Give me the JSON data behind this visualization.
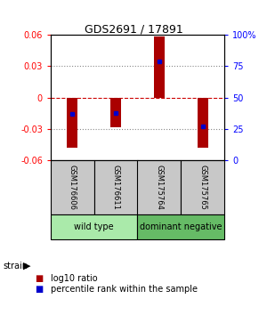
{
  "title": "GDS2691 / 17891",
  "samples": [
    "GSM176606",
    "GSM176611",
    "GSM175764",
    "GSM175765"
  ],
  "log10_ratios": [
    -0.048,
    -0.028,
    0.058,
    -0.048
  ],
  "percentile_ranks": [
    0.37,
    0.38,
    0.79,
    0.27
  ],
  "ylim": [
    -0.06,
    0.06
  ],
  "yticks_left": [
    -0.06,
    -0.03,
    0,
    0.03,
    0.06
  ],
  "ytick_labels_left": [
    "-0.06",
    "-0.03",
    "0",
    "0.03",
    "0.06"
  ],
  "ytick_labels_right": [
    "0",
    "25",
    "50",
    "75",
    "100%"
  ],
  "groups": [
    {
      "label": "wild type",
      "samples": [
        0,
        1
      ],
      "color": "#AAEAAA"
    },
    {
      "label": "dominant negative",
      "samples": [
        2,
        3
      ],
      "color": "#66BB66"
    }
  ],
  "bar_color": "#AA0000",
  "percentile_color": "#0000CC",
  "zero_line_color": "#CC0000",
  "dotted_line_color": "#888888",
  "strain_label": "strain",
  "legend_items": [
    {
      "color": "#AA0000",
      "label": "log10 ratio"
    },
    {
      "color": "#0000CC",
      "label": "percentile rank within the sample"
    }
  ],
  "bar_width": 0.25
}
